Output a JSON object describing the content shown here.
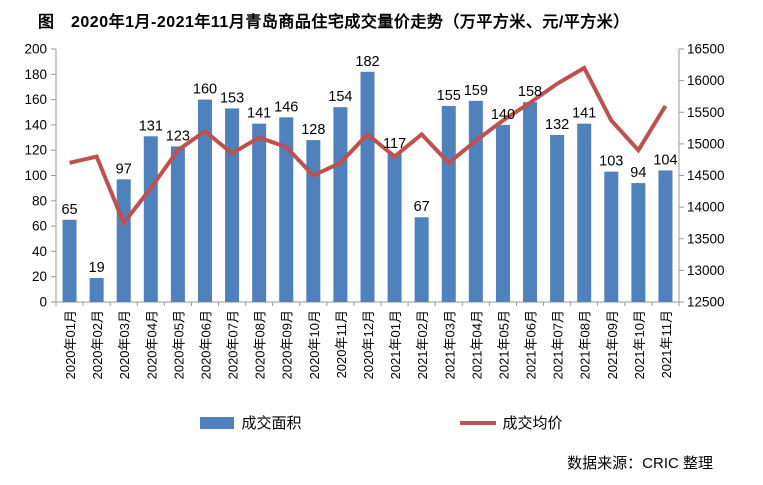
{
  "title": "图　2020年1月-2021年11月青岛商品住宅成交量价走势（万平方米、元/平方米）",
  "source": "数据来源：CRIC 整理",
  "colors": {
    "bar": "#4F81BD",
    "line": "#C0504D",
    "axis": "#9a9a9a",
    "text": "#000000",
    "background": "#ffffff"
  },
  "legend": {
    "items": [
      {
        "label": "成交面积",
        "type": "bar",
        "swatch": "bar-swatch-icon"
      },
      {
        "label": "成交均价",
        "type": "line",
        "swatch": "line-swatch-icon"
      }
    ]
  },
  "chart_data": {
    "type": "bar",
    "subtype": "bar+line combo, dual y-axis",
    "title": "2020年1月-2021年11月青岛商品住宅成交量价走势（万平方米、元/平方米）",
    "categories": [
      "2020年01月",
      "2020年02月",
      "2020年03月",
      "2020年04月",
      "2020年05月",
      "2020年06月",
      "2020年07月",
      "2020年08月",
      "2020年09月",
      "2020年10月",
      "2020年11月",
      "2020年12月",
      "2021年01月",
      "2021年02月",
      "2021年03月",
      "2021年04月",
      "2021年05月",
      "2021年06月",
      "2021年07月",
      "2021年08月",
      "2021年09月",
      "2021年10月",
      "2021年11月"
    ],
    "series": [
      {
        "name": "成交面积",
        "type": "bar",
        "axis": "left",
        "unit": "万平方米",
        "values": [
          65,
          19,
          97,
          131,
          123,
          160,
          153,
          141,
          146,
          128,
          154,
          182,
          117,
          67,
          155,
          159,
          140,
          158,
          132,
          141,
          103,
          94,
          104
        ],
        "data_labels": true
      },
      {
        "name": "成交均价",
        "type": "line",
        "axis": "right",
        "unit": "元/平方米",
        "values": [
          14700,
          14800,
          13750,
          14300,
          14900,
          15200,
          14850,
          15100,
          14950,
          14500,
          14700,
          15150,
          14800,
          15150,
          14700,
          15050,
          15370,
          15650,
          15950,
          16200,
          15370,
          14900,
          15600
        ],
        "data_labels": false,
        "values_note": "estimated from axis position, no printed labels"
      }
    ],
    "left_axis": {
      "min": 0,
      "max": 200,
      "step": 20
    },
    "right_axis": {
      "min": 12500,
      "max": 16500,
      "step": 500
    },
    "grid": false,
    "legend_position": "bottom",
    "x_label_rotation": -90
  }
}
